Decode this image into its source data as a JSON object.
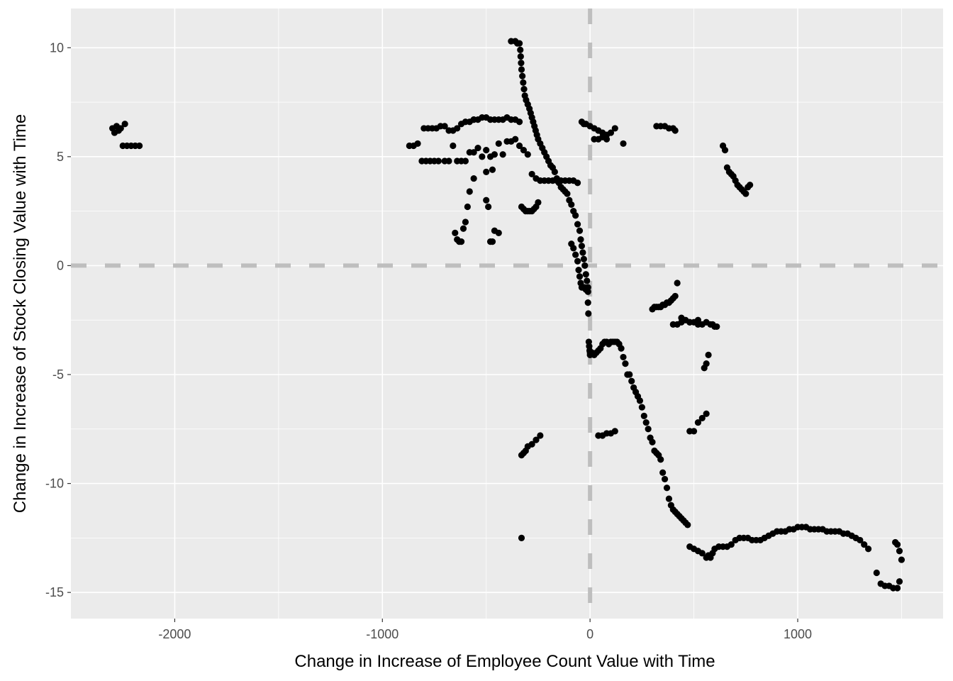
{
  "chart_data": {
    "type": "scatter",
    "title": "",
    "xlabel": "Change in Increase of Employee Count Value with Time",
    "ylabel": "Change in Increase of Stock Closing Value with Time",
    "xlim": [
      -2500,
      1700
    ],
    "ylim": [
      -16.2,
      11.8
    ],
    "x_ticks": [
      -2000,
      -1000,
      0,
      1000
    ],
    "x_tick_labels": [
      "-2000",
      "-1000",
      "0",
      "1000"
    ],
    "y_ticks": [
      10,
      5,
      0,
      -5,
      -10,
      -15
    ],
    "y_tick_labels": [
      "10",
      "5",
      "0",
      "-5",
      "-10",
      "-15"
    ],
    "grid": true,
    "reference_lines": [
      {
        "orientation": "vertical",
        "value": 0,
        "style": "dashed"
      },
      {
        "orientation": "horizontal",
        "value": 0,
        "style": "dashed"
      }
    ],
    "colors": {
      "panel": "#ebebeb",
      "grid": "#ffffff",
      "point": "#000000",
      "reference_line": "#bebebe"
    },
    "x": [
      -2300,
      -2290,
      -2280,
      -2270,
      -2260,
      -2250,
      -2240,
      -2230,
      -2210,
      -2190,
      -2170,
      -870,
      -850,
      -830,
      -810,
      -790,
      -770,
      -750,
      -730,
      -700,
      -680,
      -660,
      -640,
      -620,
      -600,
      -580,
      -560,
      -540,
      -520,
      -500,
      -480,
      -460,
      -440,
      -420,
      -400,
      -380,
      -360,
      -340,
      -320,
      -300,
      -800,
      -780,
      -760,
      -740,
      -720,
      -700,
      -680,
      -660,
      -640,
      -620,
      -600,
      -580,
      -560,
      -560,
      -540,
      -520,
      -500,
      -480,
      -460,
      -440,
      -420,
      -400,
      -380,
      -360,
      -340,
      -650,
      -640,
      -630,
      -620,
      -610,
      -600,
      -590,
      -580,
      -560,
      -500,
      -490,
      -480,
      -470,
      -460,
      -440,
      -380,
      -360,
      -350,
      -340,
      -336,
      -334,
      -332,
      -330,
      -326,
      -322,
      -318,
      -314,
      -308,
      -300,
      -292,
      -286,
      -280,
      -274,
      -268,
      -262,
      -256,
      -250,
      -240,
      -230,
      -220,
      -210,
      -200,
      -190,
      -180,
      -170,
      -160,
      -150,
      -140,
      -130,
      -120,
      -110,
      -100,
      -90,
      -80,
      -70,
      -60,
      -50,
      -45,
      -40,
      -35,
      -30,
      -25,
      -20,
      -15,
      -10,
      -330,
      -320,
      -310,
      -300,
      -290,
      -280,
      -270,
      -260,
      -250,
      -280,
      -260,
      -240,
      -220,
      -200,
      -180,
      -160,
      -140,
      -120,
      -100,
      -80,
      -60,
      -90,
      -80,
      -70,
      -60,
      -55,
      -50,
      -45,
      -40,
      -35,
      -30,
      -25,
      -20,
      -15,
      -10,
      -10,
      -8,
      -6,
      -4,
      -2,
      0,
      -40,
      -20,
      0,
      20,
      40,
      60,
      80,
      100,
      120,
      160,
      20,
      40,
      60,
      80,
      -30,
      320,
      340,
      360,
      380,
      400,
      410,
      0,
      10,
      20,
      30,
      40,
      50,
      60,
      70,
      80,
      90,
      100,
      110,
      120,
      130,
      140,
      150,
      160,
      170,
      180,
      190,
      200,
      210,
      220,
      230,
      240,
      250,
      260,
      270,
      280,
      290,
      300,
      310,
      320,
      330,
      340,
      350,
      360,
      370,
      380,
      390,
      400,
      410,
      420,
      430,
      440,
      450,
      460,
      470,
      480,
      500,
      520,
      540,
      560,
      570,
      580,
      590,
      600,
      620,
      640,
      660,
      680,
      700,
      720,
      740,
      760,
      780,
      800,
      820,
      840,
      860,
      880,
      900,
      920,
      940,
      960,
      980,
      1000,
      1020,
      1040,
      1060,
      1080,
      1100,
      1120,
      1140,
      1160,
      1180,
      1200,
      1220,
      1240,
      1260,
      1280,
      1300,
      1320,
      1340,
      1380,
      1400,
      1420,
      1440,
      1460,
      1480,
      1490,
      1500,
      1490,
      1480,
      1470,
      300,
      310,
      320,
      330,
      340,
      350,
      360,
      370,
      380,
      390,
      400,
      410,
      420,
      440,
      460,
      480,
      500,
      520,
      540,
      560,
      400,
      420,
      440,
      480,
      520,
      550,
      560,
      570,
      580,
      590,
      600,
      610,
      480,
      500,
      520,
      540,
      560,
      40,
      60,
      80,
      100,
      120,
      -330,
      -320,
      -310,
      -300,
      -280,
      -260,
      -240,
      -330,
      640,
      650,
      660,
      670,
      680,
      690,
      700,
      710,
      720,
      730,
      740,
      750,
      760,
      770,
      -500,
      -470
    ],
    "y": [
      6.3,
      6.1,
      6.4,
      6.2,
      6.3,
      5.5,
      6.5,
      5.5,
      5.5,
      5.5,
      5.5,
      5.5,
      5.5,
      5.6,
      4.8,
      4.8,
      4.8,
      4.8,
      4.8,
      4.8,
      4.8,
      5.5,
      4.8,
      4.8,
      4.8,
      5.2,
      5.2,
      5.4,
      5.0,
      5.3,
      5.0,
      5.1,
      5.6,
      5.1,
      5.7,
      5.7,
      5.8,
      5.5,
      5.3,
      5.1,
      6.3,
      6.3,
      6.3,
      6.3,
      6.4,
      6.4,
      6.2,
      6.2,
      6.3,
      6.5,
      6.6,
      6.6,
      6.7,
      6.7,
      6.7,
      6.8,
      6.8,
      6.7,
      6.7,
      6.7,
      6.7,
      6.8,
      6.7,
      6.7,
      6.6,
      1.5,
      1.2,
      1.1,
      1.1,
      1.7,
      2.0,
      2.7,
      3.4,
      4.0,
      3.0,
      2.7,
      1.1,
      1.1,
      1.6,
      1.5,
      10.3,
      10.3,
      10.2,
      10.2,
      9.9,
      9.6,
      9.3,
      9.0,
      8.7,
      8.4,
      8.1,
      7.8,
      7.6,
      7.4,
      7.2,
      7.0,
      6.8,
      6.6,
      6.4,
      6.2,
      6.0,
      5.8,
      5.6,
      5.4,
      5.2,
      5.0,
      4.8,
      4.6,
      4.5,
      4.3,
      4.0,
      3.8,
      3.6,
      3.5,
      3.4,
      3.3,
      3.0,
      2.8,
      2.5,
      2.3,
      1.9,
      1.6,
      1.2,
      0.9,
      0.6,
      0.3,
      0.0,
      -0.4,
      -0.7,
      -1.0,
      2.7,
      2.6,
      2.5,
      2.5,
      2.5,
      2.5,
      2.6,
      2.7,
      2.9,
      4.2,
      4.0,
      3.9,
      3.9,
      3.9,
      3.9,
      3.9,
      3.9,
      3.9,
      3.9,
      3.9,
      3.8,
      1.0,
      0.8,
      0.5,
      0.2,
      -0.2,
      -0.5,
      -0.8,
      -1.0,
      -1.0,
      -1.0,
      -1.0,
      -1.1,
      -1.1,
      -1.2,
      -1.7,
      -2.2,
      -3.5,
      -3.7,
      -3.9,
      -4.0,
      6.6,
      6.5,
      6.4,
      6.3,
      6.2,
      6.1,
      6.0,
      6.1,
      6.3,
      5.6,
      5.8,
      5.8,
      5.9,
      5.8,
      6.5,
      6.4,
      6.4,
      6.4,
      6.3,
      6.3,
      6.2,
      -4.1,
      -4.0,
      -4.1,
      -4.0,
      -3.9,
      -3.8,
      -3.6,
      -3.5,
      -3.5,
      -3.6,
      -3.5,
      -3.5,
      -3.5,
      -3.5,
      -3.6,
      -3.8,
      -4.2,
      -4.5,
      -5.0,
      -5.0,
      -5.3,
      -5.6,
      -5.8,
      -6.0,
      -6.2,
      -6.5,
      -6.9,
      -7.2,
      -7.5,
      -7.9,
      -8.1,
      -8.5,
      -8.6,
      -8.7,
      -8.9,
      -9.5,
      -9.8,
      -10.2,
      -10.7,
      -11.0,
      -11.2,
      -11.3,
      -11.4,
      -11.5,
      -11.6,
      -11.7,
      -11.8,
      -11.9,
      -12.9,
      -13.0,
      -13.1,
      -13.2,
      -13.4,
      -13.3,
      -13.4,
      -13.2,
      -13.0,
      -12.9,
      -12.9,
      -12.9,
      -12.8,
      -12.6,
      -12.5,
      -12.5,
      -12.5,
      -12.6,
      -12.6,
      -12.6,
      -12.5,
      -12.4,
      -12.3,
      -12.2,
      -12.2,
      -12.2,
      -12.1,
      -12.1,
      -12.0,
      -12.0,
      -12.0,
      -12.1,
      -12.1,
      -12.1,
      -12.1,
      -12.2,
      -12.2,
      -12.2,
      -12.2,
      -12.3,
      -12.3,
      -12.4,
      -12.5,
      -12.6,
      -12.8,
      -13.0,
      -14.1,
      -14.6,
      -14.7,
      -14.7,
      -14.8,
      -14.8,
      -14.5,
      -13.5,
      -13.1,
      -12.8,
      -12.7,
      -2.0,
      -1.9,
      -1.9,
      -1.9,
      -1.9,
      -1.8,
      -1.8,
      -1.7,
      -1.7,
      -1.6,
      -1.5,
      -1.4,
      -0.8,
      -2.4,
      -2.5,
      -2.6,
      -2.6,
      -2.7,
      -2.7,
      -2.6,
      -2.7,
      -2.7,
      -2.6,
      -2.6,
      -2.5,
      -4.7,
      -4.5,
      -4.1,
      -2.7,
      -2.7,
      -2.8,
      -2.8,
      -7.6,
      -7.6,
      -7.2,
      -7.0,
      -6.8,
      -7.8,
      -7.8,
      -7.7,
      -7.7,
      -7.6,
      -8.7,
      -8.6,
      -8.5,
      -8.3,
      -8.2,
      -8.0,
      -7.8,
      -12.5,
      5.5,
      5.3,
      4.5,
      4.3,
      4.2,
      4.1,
      3.9,
      3.7,
      3.6,
      3.5,
      3.4,
      3.3,
      3.6,
      3.7,
      4.3,
      4.4
    ]
  }
}
